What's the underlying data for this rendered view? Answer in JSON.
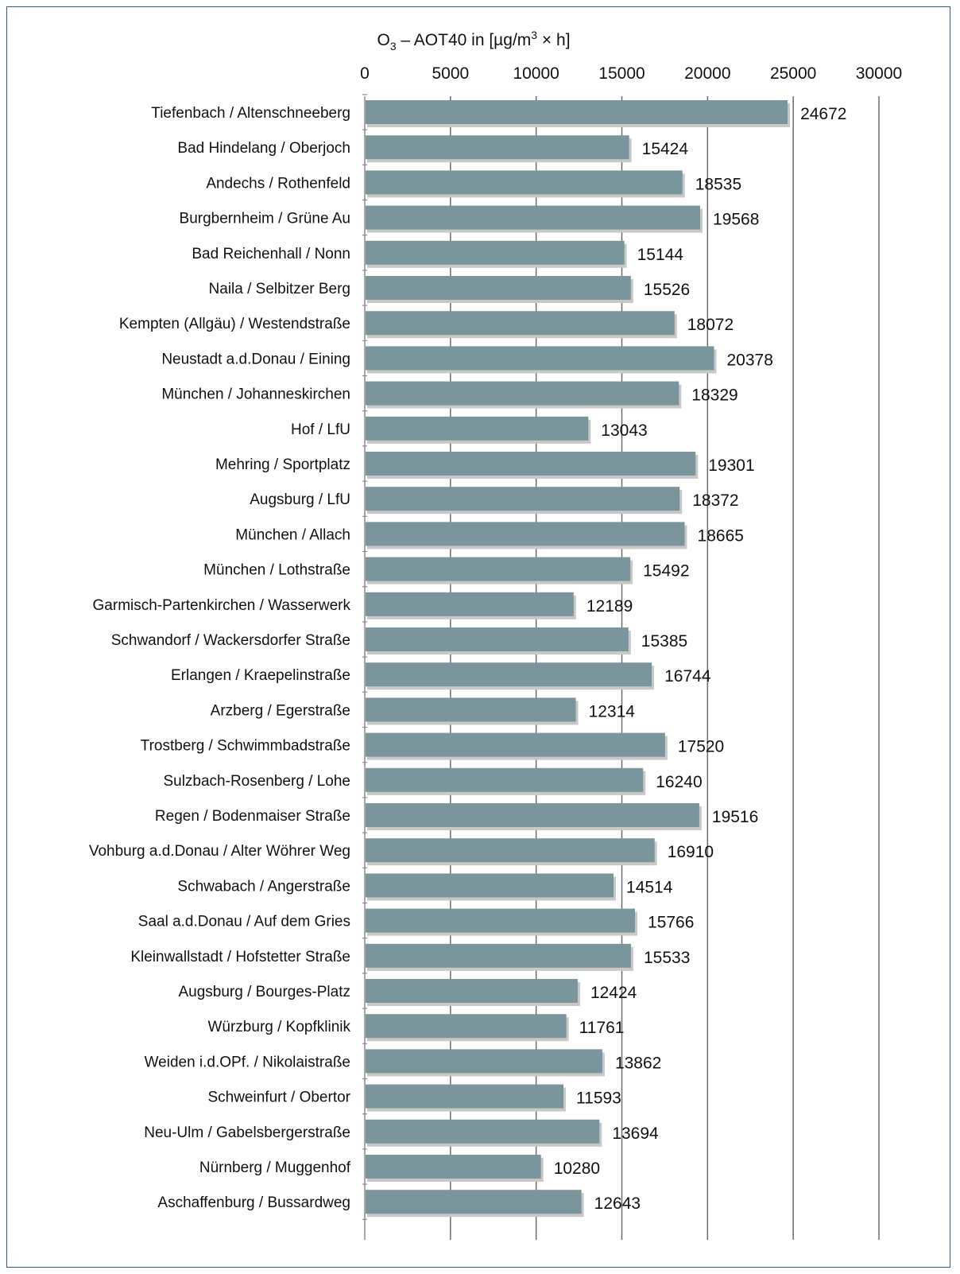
{
  "chart_data": {
    "type": "bar",
    "orientation": "horizontal",
    "title": "O₃ – AOT40 in [µg/m³ × h]",
    "xlim": [
      0,
      30000
    ],
    "xticks": [
      0,
      5000,
      10000,
      15000,
      20000,
      25000,
      30000
    ],
    "axis_position": "top",
    "grid": true,
    "colors": {
      "bar": "#7a959c",
      "bar_shadow": "#c8c8c8",
      "grid": "#6b6b6b",
      "frame": "#2f5f7a"
    },
    "categories": [
      "Tiefenbach / Altenschneeberg",
      "Bad Hindelang / Oberjoch",
      "Andechs / Rothenfeld",
      "Burgbernheim / Grüne Au",
      "Bad Reichenhall / Nonn",
      "Naila / Selbitzer Berg",
      "Kempten (Allgäu) / Westendstraße",
      "Neustadt a.d.Donau / Eining",
      "München / Johanneskirchen",
      "Hof / LfU",
      "Mehring / Sportplatz",
      "Augsburg / LfU",
      "München / Allach",
      "München / Lothstraße",
      "Garmisch-Partenkirchen / Wasserwerk",
      "Schwandorf / Wackersdorfer Straße",
      "Erlangen / Kraepelinstraße",
      "Arzberg / Egerstraße",
      "Trostberg / Schwimmbadstraße",
      "Sulzbach-Rosenberg / Lohe",
      "Regen / Bodenmaiser Straße",
      "Vohburg a.d.Donau / Alter Wöhrer Weg",
      "Schwabach / Angerstraße",
      "Saal a.d.Donau / Auf dem Gries",
      "Kleinwallstadt / Hofstetter Straße",
      "Augsburg / Bourges-Platz",
      "Würzburg / Kopfklinik",
      "Weiden i.d.OPf. / Nikolaistraße",
      "Schweinfurt / Obertor",
      "Neu-Ulm / Gabelsbergerstraße",
      "Nürnberg / Muggenhof",
      "Aschaffenburg / Bussardweg"
    ],
    "values": [
      24672,
      15424,
      18535,
      19568,
      15144,
      15526,
      18072,
      20378,
      18329,
      13043,
      19301,
      18372,
      18665,
      15492,
      12189,
      15385,
      16744,
      12314,
      17520,
      16240,
      19516,
      16910,
      14514,
      15766,
      15533,
      12424,
      11761,
      13862,
      11593,
      13694,
      10280,
      12643
    ]
  }
}
